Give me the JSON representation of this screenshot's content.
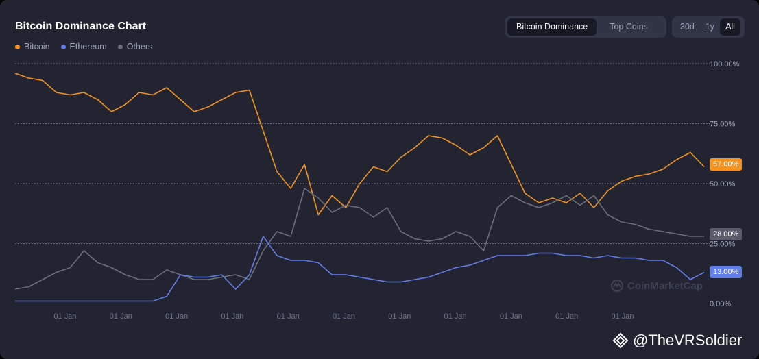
{
  "header": {
    "title": "Bitcoin Dominance Chart"
  },
  "legend": [
    {
      "label": "Bitcoin",
      "color": "#f7931a"
    },
    {
      "label": "Ethereum",
      "color": "#627eea"
    },
    {
      "label": "Others",
      "color": "#6b6e7c"
    }
  ],
  "view_tabs": [
    {
      "label": "Bitcoin Dominance",
      "active": true
    },
    {
      "label": "Top Coins",
      "active": false
    }
  ],
  "range_tabs": [
    {
      "label": "30d",
      "active": false
    },
    {
      "label": "1y",
      "active": false
    },
    {
      "label": "All",
      "active": true
    }
  ],
  "watermark": "CoinMarketCap",
  "signature": "@TheVRSoldier",
  "chart_data": {
    "type": "line",
    "ylim": [
      0,
      100
    ],
    "y_ticks": [
      "100.00%",
      "75.00%",
      "50.00%",
      "25.00%",
      "0.00%"
    ],
    "x_ticks": [
      "01 Jan",
      "01 Jan",
      "01 Jan",
      "01 Jan",
      "01 Jan",
      "01 Jan",
      "01 Jan",
      "01 Jan",
      "01 Jan",
      "01 Jan",
      "01 Jan"
    ],
    "x": [
      0,
      2,
      4,
      6,
      8,
      10,
      12,
      14,
      16,
      18,
      20,
      22,
      24,
      26,
      28,
      30,
      32,
      34,
      36,
      38,
      40,
      42,
      44,
      46,
      48,
      50,
      52,
      54,
      56,
      58,
      60,
      62,
      64,
      66,
      68,
      70,
      72,
      74,
      76,
      78,
      80,
      82,
      84,
      86,
      88,
      90,
      92,
      94,
      96,
      98,
      100
    ],
    "last_values": {
      "Bitcoin": "57.00%",
      "Others": "28.00%",
      "Ethereum": "13.00%"
    },
    "series": [
      {
        "name": "Bitcoin",
        "color": "#f7931a",
        "values": [
          96,
          94,
          93,
          88,
          87,
          88,
          85,
          80,
          83,
          88,
          87,
          90,
          85,
          80,
          82,
          85,
          88,
          89,
          72,
          55,
          48,
          58,
          37,
          45,
          40,
          50,
          57,
          55,
          61,
          65,
          70,
          69,
          66,
          62,
          65,
          70,
          58,
          46,
          42,
          44,
          42,
          46,
          40,
          47,
          51,
          53,
          54,
          56,
          60,
          63,
          57
        ]
      },
      {
        "name": "Others",
        "color": "#6b6e7c",
        "values": [
          6,
          7,
          10,
          13,
          15,
          22,
          17,
          15,
          12,
          10,
          10,
          14,
          12,
          10,
          10,
          11,
          12,
          10,
          22,
          30,
          28,
          48,
          44,
          38,
          41,
          40,
          36,
          40,
          30,
          27,
          26,
          27,
          30,
          28,
          22,
          40,
          45,
          42,
          40,
          42,
          45,
          41,
          45,
          37,
          34,
          33,
          31,
          30,
          29,
          28,
          28
        ]
      },
      {
        "name": "Ethereum",
        "color": "#627eea",
        "values": [
          1,
          1,
          1,
          1,
          1,
          1,
          1,
          1,
          1,
          1,
          1,
          3,
          12,
          11,
          11,
          12,
          6,
          12,
          28,
          20,
          18,
          18,
          17,
          12,
          12,
          11,
          10,
          9,
          9,
          10,
          11,
          13,
          15,
          16,
          18,
          20,
          20,
          20,
          21,
          21,
          20,
          20,
          19,
          20,
          19,
          19,
          18,
          18,
          15,
          10,
          13
        ]
      }
    ]
  }
}
